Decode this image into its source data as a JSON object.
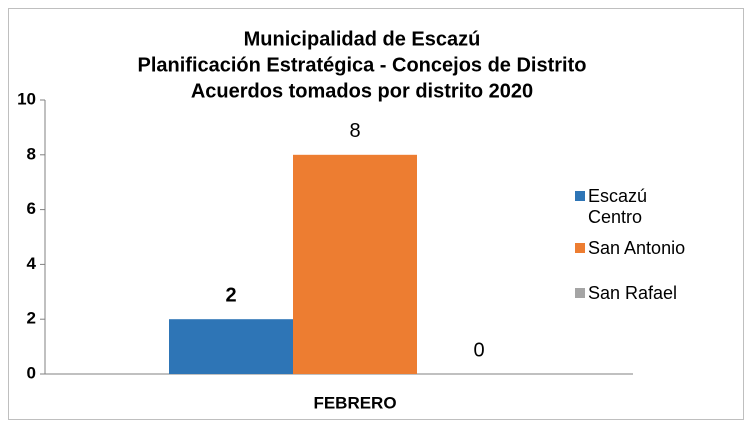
{
  "chart_data": {
    "type": "bar",
    "title": [
      "Municipalidad de Escazú",
      "Planificación Estratégica - Concejos de Distrito",
      "Acuerdos tomados  por distrito  2020"
    ],
    "categories": [
      "FEBRERO"
    ],
    "series": [
      {
        "name": "Escazú Centro",
        "color": "#2e75b6",
        "values": [
          2
        ]
      },
      {
        "name": "San Antonio",
        "color": "#ed7d31",
        "values": [
          8
        ]
      },
      {
        "name": "San Rafael",
        "color": "#a5a5a5",
        "values": [
          0
        ]
      }
    ],
    "ylim": [
      0,
      10
    ],
    "yticks": [
      0,
      2,
      4,
      6,
      8,
      10
    ],
    "grid": false,
    "legend": "right"
  }
}
